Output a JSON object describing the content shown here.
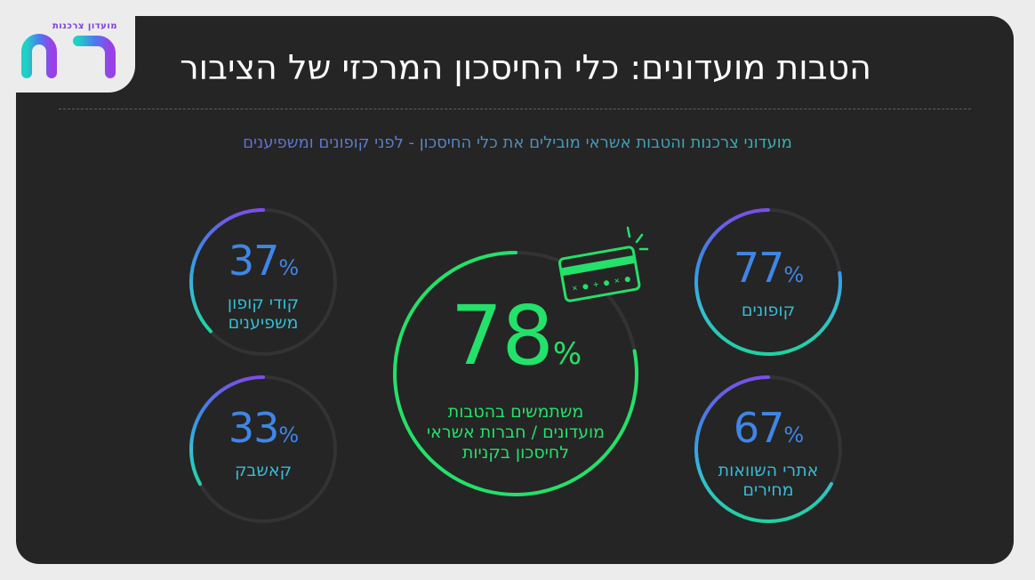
{
  "logo": {
    "small_text": "מועדון צרכנות",
    "brand": "הוט"
  },
  "header": {
    "title": "הטבות מועדונים: כלי החיסכון המרכזי של הציבור"
  },
  "subtitle": "מועדוני צרכנות והטבות אשראי מובילים את כלי החיסכון - לפני קופונים ומשפיענים",
  "colors": {
    "purple": "#7b4ee8",
    "blue": "#3f86e6",
    "teal": "#35bcd4",
    "green": "#23e16a",
    "track": "#333333"
  },
  "stats": [
    {
      "id": "coupon-codes",
      "value": "37",
      "unit": "%",
      "label_line1": "קודי קופון",
      "label_line2": "משפיענים",
      "fraction": 0.37
    },
    {
      "id": "cashback",
      "value": "33",
      "unit": "%",
      "label_line1": "קאשבק",
      "label_line2": "",
      "fraction": 0.33
    },
    {
      "id": "coupons",
      "value": "77",
      "unit": "%",
      "label_line1": "קופונים",
      "label_line2": "",
      "fraction": 0.77
    },
    {
      "id": "price-comparison",
      "value": "67",
      "unit": "%",
      "label_line1": "אתרי השוואות",
      "label_line2": "מחירים",
      "fraction": 0.67
    }
  ],
  "main_stat": {
    "value": "78",
    "unit": "%",
    "label_line1": "משתמשים בהטבות",
    "label_line2": "מועדונים / חברות אשראי",
    "label_line3": "לחיסכון בקניות",
    "fraction": 0.78,
    "icon": "credit-card-icon"
  }
}
